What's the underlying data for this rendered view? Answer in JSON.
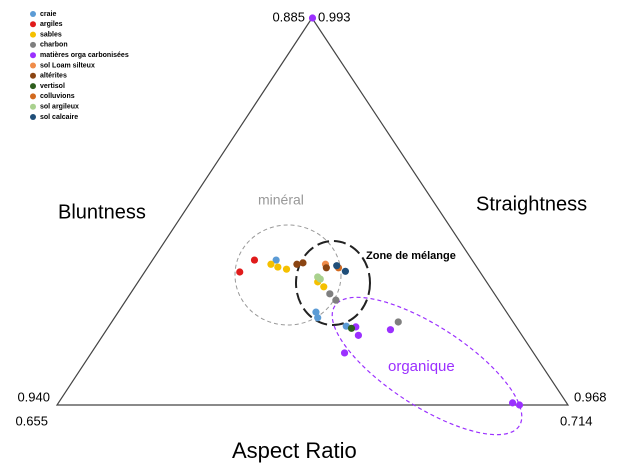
{
  "chart_data": {
    "type": "ternary",
    "axes": {
      "aspect_ratio": {
        "label": "Aspect Ratio",
        "lim": [
          0.655,
          0.714
        ],
        "ticks": [
          0.655,
          0.714
        ]
      },
      "bluntness": {
        "label": "Bluntness",
        "lim": [
          0.94,
          0.885
        ],
        "ticks": [
          {
            "value": 0.94,
            "label": "0.940"
          },
          0.885
        ]
      },
      "straightness": {
        "label": "Straightness",
        "lim": [
          0.968,
          0.993
        ],
        "ticks": [
          0.968,
          0.993
        ]
      }
    },
    "annotations": [
      "minéral",
      "Zone de mélange",
      "organique"
    ],
    "series": [
      {
        "name": "craie",
        "color": "#5b9bd5",
        "x": [
          0.6803,
          0.6851,
          0.6849,
          0.6884
        ],
        "y": [
          0.9194,
          0.9276,
          0.9268,
          0.9288
        ]
      },
      {
        "name": "argiles",
        "color": "#e01b1b",
        "x": [
          0.6778,
          0.6761
        ],
        "y": [
          0.9194,
          0.9211
        ]
      },
      {
        "name": "sables",
        "color": "#f5c000",
        "x": [
          0.6797,
          0.6805,
          0.6815,
          0.6851,
          0.6858
        ],
        "y": [
          0.92,
          0.9204,
          0.9207,
          0.9225,
          0.9232
        ]
      },
      {
        "name": "charbon",
        "color": "#7f7f7f",
        "x": [
          0.6865,
          0.6872,
          0.6944
        ],
        "y": [
          0.9242,
          0.9251,
          0.9282
        ]
      },
      {
        "name": "matières orga carbonisées",
        "color": "#9b30ff",
        "x": [
          0.6845,
          0.6895,
          0.6882,
          0.6898,
          0.6935,
          0.7076,
          0.7084
        ],
        "y": [
          0.885,
          0.9289,
          0.9326,
          0.9301,
          0.9293,
          0.9397,
          0.94
        ]
      },
      {
        "name": "sol Loam silteux",
        "color": "#f08c4a",
        "x": [
          0.686
        ],
        "y": [
          0.92
        ]
      },
      {
        "name": "altérites",
        "color": "#8b4513",
        "x": [
          0.6827,
          0.6834,
          0.6861
        ],
        "y": [
          0.92,
          0.9198,
          0.9205
        ]
      },
      {
        "name": "vertisol",
        "color": "#2e5e1e",
        "x": [
          0.689
        ],
        "y": [
          0.9291
        ]
      },
      {
        "name": "colluvions",
        "color": "#d2691e",
        "x": [
          0.6875
        ],
        "y": [
          0.9205
        ]
      },
      {
        "name": "sol argileux",
        "color": "#a9d18e",
        "x": [
          0.6851,
          0.6854
        ],
        "y": [
          0.9218,
          0.9221
        ]
      },
      {
        "name": "sol calcaire",
        "color": "#1f4e79",
        "x": [
          0.6873,
          0.6883
        ],
        "y": [
          0.9202,
          0.921
        ]
      }
    ]
  }
}
